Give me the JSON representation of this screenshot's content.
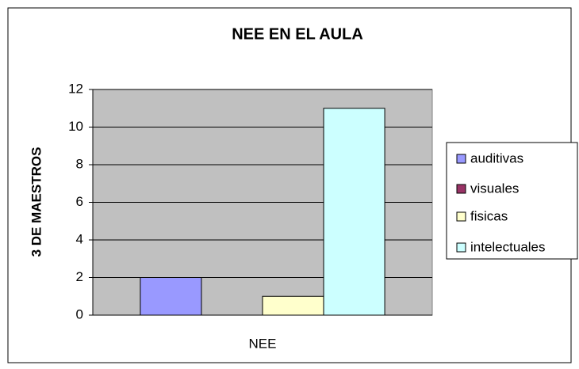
{
  "chart_data": {
    "type": "bar",
    "title": "NEE EN EL AULA",
    "y_label": "3 DE MAESTROS",
    "categories": [
      "NEE"
    ],
    "series": [
      {
        "name": "auditivas",
        "color": "#9999ff",
        "values": [
          2
        ]
      },
      {
        "name": "visuales",
        "color": "#993366",
        "values": [
          0
        ]
      },
      {
        "name": "fisicas",
        "color": "#ffffcc",
        "values": [
          1
        ]
      },
      {
        "name": "intelectuales",
        "color": "#ccffff",
        "values": [
          11
        ]
      }
    ],
    "ylim": [
      0,
      12
    ],
    "yticks": [
      0,
      2,
      4,
      6,
      8,
      10,
      12
    ],
    "grid": true,
    "legend": "right"
  }
}
